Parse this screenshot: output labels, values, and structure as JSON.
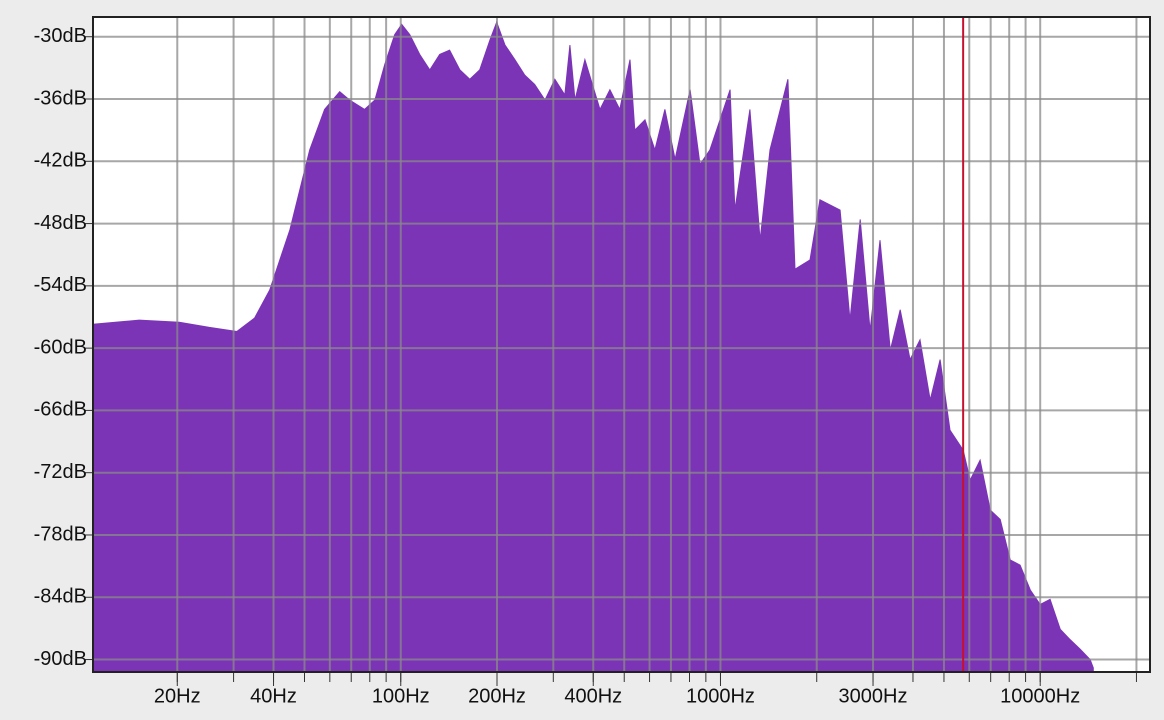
{
  "chart_data": {
    "type": "area",
    "x_scale": "log",
    "color": "#7b34b6",
    "grid": true,
    "xlim": [
      10.9,
      22050
    ],
    "ylim": [
      -91.2,
      -28.1
    ],
    "xticks": [
      {
        "value": 20,
        "label": "20Hz"
      },
      {
        "value": 40,
        "label": "40Hz"
      },
      {
        "value": 100,
        "label": "100Hz"
      },
      {
        "value": 200,
        "label": "200Hz"
      },
      {
        "value": 400,
        "label": "400Hz"
      },
      {
        "value": 1000,
        "label": "1000Hz"
      },
      {
        "value": 3000,
        "label": "3000Hz"
      },
      {
        "value": 10000,
        "label": "10000Hz"
      }
    ],
    "x_grid": [
      20,
      30,
      40,
      50,
      60,
      70,
      80,
      90,
      100,
      200,
      300,
      400,
      500,
      600,
      700,
      800,
      900,
      1000,
      2000,
      3000,
      4000,
      5000,
      6000,
      7000,
      8000,
      9000,
      10000,
      20000
    ],
    "yticks": [
      {
        "value": -30,
        "label": "-30dB"
      },
      {
        "value": -36,
        "label": "-36dB"
      },
      {
        "value": -42,
        "label": "-42dB"
      },
      {
        "value": -48,
        "label": "-48dB"
      },
      {
        "value": -54,
        "label": "-54dB"
      },
      {
        "value": -60,
        "label": "-60dB"
      },
      {
        "value": -66,
        "label": "-66dB"
      },
      {
        "value": -72,
        "label": "-72dB"
      },
      {
        "value": -78,
        "label": "-78dB"
      },
      {
        "value": -84,
        "label": "-84dB"
      },
      {
        "value": -90,
        "label": "-90dB"
      }
    ],
    "marker": {
      "x": 5741,
      "color": "#c8102e"
    },
    "x": [
      10.9,
      15.2,
      20.3,
      25.2,
      30.7,
      34.9,
      38.9,
      45.0,
      51.9,
      57.8,
      64.4,
      69.2,
      77.1,
      83.0,
      89.1,
      95.7,
      100.7,
      106.7,
      114.6,
      123.3,
      132.4,
      142.2,
      153.1,
      164.4,
      176.6,
      190.1,
      199.5,
      211.8,
      227.5,
      244.3,
      262.4,
      282.5,
      303.4,
      325.8,
      338.1,
      350.8,
      376.7,
      419.8,
      450.8,
      484.2,
      521.2,
      539.5,
      580.8,
      623.7,
      669.9,
      721.1,
      803.5,
      863.0,
      926.8,
      1071.5,
      1109.2,
      1236.0,
      1330.0,
      1428.9,
      1625.5,
      1710.0,
      1905.5,
      2046.4,
      2365.9,
      2541.0,
      2735.2,
      2937.6,
      3155.0,
      3396.3,
      3647.5,
      3917.3,
      4207.2,
      4528.8,
      4864.0,
      5223.9,
      5741.0,
      6039.5,
      6486.3,
      6982.3,
      7498.9,
      8053.8,
      8649.8,
      9311.1,
      10000,
      10740,
      11561,
      12417,
      13335,
      14322,
      14655
    ],
    "values": [
      -57.7,
      -57.3,
      -57.5,
      -58.0,
      -58.4,
      -57.1,
      -54.4,
      -48.6,
      -40.9,
      -37.0,
      -35.3,
      -36.1,
      -37.0,
      -36.1,
      -32.7,
      -29.8,
      -28.8,
      -29.8,
      -31.7,
      -33.2,
      -31.7,
      -31.3,
      -33.2,
      -34.1,
      -33.2,
      -30.3,
      -28.6,
      -30.8,
      -32.2,
      -33.7,
      -34.6,
      -36.1,
      -34.1,
      -35.6,
      -30.8,
      -36.1,
      -32.2,
      -37.0,
      -35.1,
      -37.0,
      -32.2,
      -39.0,
      -38.0,
      -40.9,
      -37.0,
      -41.8,
      -35.1,
      -42.3,
      -40.9,
      -35.1,
      -46.7,
      -37.0,
      -49.6,
      -40.9,
      -34.1,
      -52.4,
      -51.5,
      -45.7,
      -46.7,
      -57.3,
      -47.6,
      -58.3,
      -49.6,
      -60.2,
      -56.3,
      -61.1,
      -59.2,
      -65.0,
      -61.1,
      -67.9,
      -69.8,
      -72.7,
      -70.8,
      -75.6,
      -76.5,
      -80.4,
      -80.9,
      -83.3,
      -84.7,
      -84.2,
      -87.1,
      -88.1,
      -89.0,
      -90.0,
      -90.8
    ]
  }
}
